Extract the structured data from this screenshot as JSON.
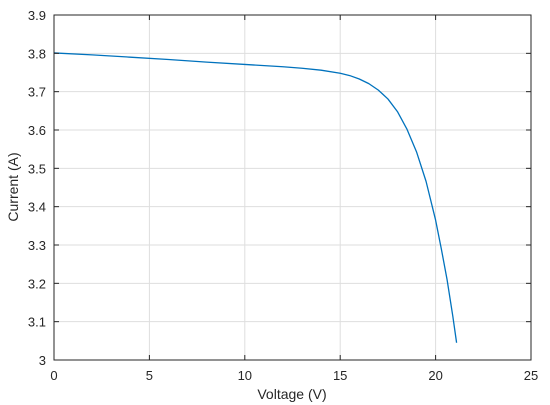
{
  "chart_data": {
    "type": "line",
    "title": "",
    "xlabel": "Voltage (V)",
    "ylabel": "Current (A)",
    "xlim": [
      0,
      25
    ],
    "ylim": [
      3,
      3.9
    ],
    "x_ticks": [
      0,
      5,
      10,
      15,
      20,
      25
    ],
    "y_ticks": [
      3,
      3.1,
      3.2,
      3.3,
      3.4,
      3.5,
      3.6,
      3.7,
      3.8,
      3.9
    ],
    "x_tick_labels": [
      "0",
      "5",
      "10",
      "15",
      "20",
      "25"
    ],
    "y_tick_labels": [
      "3",
      "3.1",
      "3.2",
      "3.3",
      "3.4",
      "3.5",
      "3.6",
      "3.7",
      "3.8",
      "3.9"
    ],
    "grid": true,
    "legend": "none",
    "series": [
      {
        "color": "#0072BD",
        "x": [
          0,
          2,
          4,
          6,
          8,
          10,
          12,
          13,
          14,
          15,
          15.5,
          16,
          16.5,
          17,
          17.5,
          18,
          18.5,
          19,
          19.5,
          20,
          20.3,
          20.6,
          20.9,
          21.1
        ],
        "y": [
          3.801,
          3.796,
          3.79,
          3.784,
          3.777,
          3.771,
          3.765,
          3.761,
          3.756,
          3.748,
          3.742,
          3.733,
          3.721,
          3.704,
          3.681,
          3.648,
          3.602,
          3.543,
          3.466,
          3.365,
          3.29,
          3.21,
          3.115,
          3.045
        ]
      }
    ]
  }
}
